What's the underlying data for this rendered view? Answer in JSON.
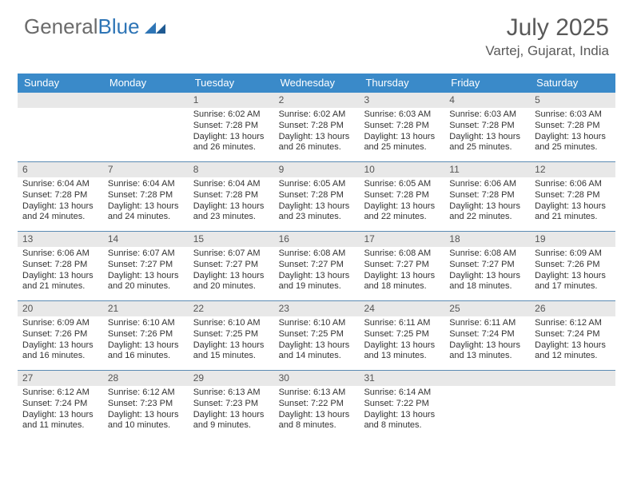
{
  "logo": {
    "part1": "General",
    "part2": "Blue"
  },
  "title": "July 2025",
  "location": "Vartej, Gujarat, India",
  "colors": {
    "header_bg": "#3a8ac9",
    "daynum_bg": "#e8e8e8",
    "row_border": "#5b8bb3",
    "text": "#333333",
    "title_text": "#595959",
    "logo_gray": "#6b6b6b",
    "logo_blue": "#2e75b6"
  },
  "day_headers": [
    "Sunday",
    "Monday",
    "Tuesday",
    "Wednesday",
    "Thursday",
    "Friday",
    "Saturday"
  ],
  "weeks": [
    [
      {
        "num": "",
        "empty": true
      },
      {
        "num": "",
        "empty": true
      },
      {
        "num": "1",
        "sunrise": "Sunrise: 6:02 AM",
        "sunset": "Sunset: 7:28 PM",
        "daylight1": "Daylight: 13 hours",
        "daylight2": "and 26 minutes."
      },
      {
        "num": "2",
        "sunrise": "Sunrise: 6:02 AM",
        "sunset": "Sunset: 7:28 PM",
        "daylight1": "Daylight: 13 hours",
        "daylight2": "and 26 minutes."
      },
      {
        "num": "3",
        "sunrise": "Sunrise: 6:03 AM",
        "sunset": "Sunset: 7:28 PM",
        "daylight1": "Daylight: 13 hours",
        "daylight2": "and 25 minutes."
      },
      {
        "num": "4",
        "sunrise": "Sunrise: 6:03 AM",
        "sunset": "Sunset: 7:28 PM",
        "daylight1": "Daylight: 13 hours",
        "daylight2": "and 25 minutes."
      },
      {
        "num": "5",
        "sunrise": "Sunrise: 6:03 AM",
        "sunset": "Sunset: 7:28 PM",
        "daylight1": "Daylight: 13 hours",
        "daylight2": "and 25 minutes."
      }
    ],
    [
      {
        "num": "6",
        "sunrise": "Sunrise: 6:04 AM",
        "sunset": "Sunset: 7:28 PM",
        "daylight1": "Daylight: 13 hours",
        "daylight2": "and 24 minutes."
      },
      {
        "num": "7",
        "sunrise": "Sunrise: 6:04 AM",
        "sunset": "Sunset: 7:28 PM",
        "daylight1": "Daylight: 13 hours",
        "daylight2": "and 24 minutes."
      },
      {
        "num": "8",
        "sunrise": "Sunrise: 6:04 AM",
        "sunset": "Sunset: 7:28 PM",
        "daylight1": "Daylight: 13 hours",
        "daylight2": "and 23 minutes."
      },
      {
        "num": "9",
        "sunrise": "Sunrise: 6:05 AM",
        "sunset": "Sunset: 7:28 PM",
        "daylight1": "Daylight: 13 hours",
        "daylight2": "and 23 minutes."
      },
      {
        "num": "10",
        "sunrise": "Sunrise: 6:05 AM",
        "sunset": "Sunset: 7:28 PM",
        "daylight1": "Daylight: 13 hours",
        "daylight2": "and 22 minutes."
      },
      {
        "num": "11",
        "sunrise": "Sunrise: 6:06 AM",
        "sunset": "Sunset: 7:28 PM",
        "daylight1": "Daylight: 13 hours",
        "daylight2": "and 22 minutes."
      },
      {
        "num": "12",
        "sunrise": "Sunrise: 6:06 AM",
        "sunset": "Sunset: 7:28 PM",
        "daylight1": "Daylight: 13 hours",
        "daylight2": "and 21 minutes."
      }
    ],
    [
      {
        "num": "13",
        "sunrise": "Sunrise: 6:06 AM",
        "sunset": "Sunset: 7:28 PM",
        "daylight1": "Daylight: 13 hours",
        "daylight2": "and 21 minutes."
      },
      {
        "num": "14",
        "sunrise": "Sunrise: 6:07 AM",
        "sunset": "Sunset: 7:27 PM",
        "daylight1": "Daylight: 13 hours",
        "daylight2": "and 20 minutes."
      },
      {
        "num": "15",
        "sunrise": "Sunrise: 6:07 AM",
        "sunset": "Sunset: 7:27 PM",
        "daylight1": "Daylight: 13 hours",
        "daylight2": "and 20 minutes."
      },
      {
        "num": "16",
        "sunrise": "Sunrise: 6:08 AM",
        "sunset": "Sunset: 7:27 PM",
        "daylight1": "Daylight: 13 hours",
        "daylight2": "and 19 minutes."
      },
      {
        "num": "17",
        "sunrise": "Sunrise: 6:08 AM",
        "sunset": "Sunset: 7:27 PM",
        "daylight1": "Daylight: 13 hours",
        "daylight2": "and 18 minutes."
      },
      {
        "num": "18",
        "sunrise": "Sunrise: 6:08 AM",
        "sunset": "Sunset: 7:27 PM",
        "daylight1": "Daylight: 13 hours",
        "daylight2": "and 18 minutes."
      },
      {
        "num": "19",
        "sunrise": "Sunrise: 6:09 AM",
        "sunset": "Sunset: 7:26 PM",
        "daylight1": "Daylight: 13 hours",
        "daylight2": "and 17 minutes."
      }
    ],
    [
      {
        "num": "20",
        "sunrise": "Sunrise: 6:09 AM",
        "sunset": "Sunset: 7:26 PM",
        "daylight1": "Daylight: 13 hours",
        "daylight2": "and 16 minutes."
      },
      {
        "num": "21",
        "sunrise": "Sunrise: 6:10 AM",
        "sunset": "Sunset: 7:26 PM",
        "daylight1": "Daylight: 13 hours",
        "daylight2": "and 16 minutes."
      },
      {
        "num": "22",
        "sunrise": "Sunrise: 6:10 AM",
        "sunset": "Sunset: 7:25 PM",
        "daylight1": "Daylight: 13 hours",
        "daylight2": "and 15 minutes."
      },
      {
        "num": "23",
        "sunrise": "Sunrise: 6:10 AM",
        "sunset": "Sunset: 7:25 PM",
        "daylight1": "Daylight: 13 hours",
        "daylight2": "and 14 minutes."
      },
      {
        "num": "24",
        "sunrise": "Sunrise: 6:11 AM",
        "sunset": "Sunset: 7:25 PM",
        "daylight1": "Daylight: 13 hours",
        "daylight2": "and 13 minutes."
      },
      {
        "num": "25",
        "sunrise": "Sunrise: 6:11 AM",
        "sunset": "Sunset: 7:24 PM",
        "daylight1": "Daylight: 13 hours",
        "daylight2": "and 13 minutes."
      },
      {
        "num": "26",
        "sunrise": "Sunrise: 6:12 AM",
        "sunset": "Sunset: 7:24 PM",
        "daylight1": "Daylight: 13 hours",
        "daylight2": "and 12 minutes."
      }
    ],
    [
      {
        "num": "27",
        "sunrise": "Sunrise: 6:12 AM",
        "sunset": "Sunset: 7:24 PM",
        "daylight1": "Daylight: 13 hours",
        "daylight2": "and 11 minutes."
      },
      {
        "num": "28",
        "sunrise": "Sunrise: 6:12 AM",
        "sunset": "Sunset: 7:23 PM",
        "daylight1": "Daylight: 13 hours",
        "daylight2": "and 10 minutes."
      },
      {
        "num": "29",
        "sunrise": "Sunrise: 6:13 AM",
        "sunset": "Sunset: 7:23 PM",
        "daylight1": "Daylight: 13 hours",
        "daylight2": "and 9 minutes."
      },
      {
        "num": "30",
        "sunrise": "Sunrise: 6:13 AM",
        "sunset": "Sunset: 7:22 PM",
        "daylight1": "Daylight: 13 hours",
        "daylight2": "and 8 minutes."
      },
      {
        "num": "31",
        "sunrise": "Sunrise: 6:14 AM",
        "sunset": "Sunset: 7:22 PM",
        "daylight1": "Daylight: 13 hours",
        "daylight2": "and 8 minutes."
      },
      {
        "num": "",
        "empty": true
      },
      {
        "num": "",
        "empty": true
      }
    ]
  ]
}
